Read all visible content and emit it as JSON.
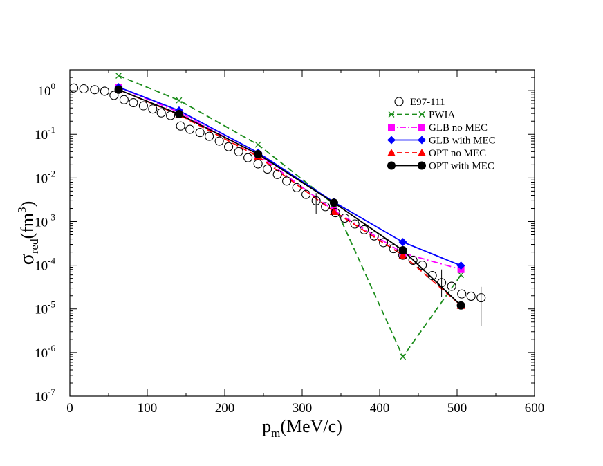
{
  "chart_data": {
    "type": "scatter",
    "title": "",
    "xlabel": {
      "main": "p",
      "sub": "m",
      "rest": "(MeV/c)"
    },
    "ylabel": {
      "main": "σ",
      "sub": "red",
      "rest": "(fm",
      "sup": "3",
      "close": ")"
    },
    "xlim": [
      0,
      600
    ],
    "ylim": [
      1e-07,
      3
    ],
    "yscale": "log",
    "x_ticks": [
      0,
      100,
      200,
      300,
      400,
      500,
      600
    ],
    "y_tick_exponents": [
      -7,
      -6,
      -5,
      -4,
      -3,
      -2,
      -1,
      0
    ],
    "grid": false,
    "legend_position": "top-right",
    "series": [
      {
        "name": "E97-111",
        "style": "open-circle",
        "color": "#000000",
        "x": [
          5,
          18,
          32,
          45,
          57,
          70,
          82,
          95,
          107,
          118,
          130,
          143,
          155,
          168,
          180,
          193,
          205,
          218,
          230,
          243,
          255,
          268,
          280,
          293,
          305,
          318,
          330,
          343,
          355,
          368,
          380,
          393,
          405,
          418,
          430,
          443,
          455,
          468,
          480,
          493,
          506,
          518,
          531
        ],
        "y": [
          1.15,
          1.1,
          1.05,
          0.97,
          0.78,
          0.62,
          0.53,
          0.45,
          0.38,
          0.31,
          0.27,
          0.155,
          0.13,
          0.11,
          0.09,
          0.07,
          0.052,
          0.04,
          0.029,
          0.021,
          0.016,
          0.012,
          0.0085,
          0.006,
          0.0042,
          0.003,
          0.0022,
          0.0016,
          0.0012,
          0.00088,
          0.00065,
          0.00047,
          0.00033,
          0.00024,
          0.00017,
          0.00013,
          0.0001,
          5.8e-05,
          4e-05,
          3.3e-05,
          2.2e-05,
          1.95e-05,
          1.8e-05
        ],
        "err_low": [
          null,
          null,
          null,
          null,
          null,
          null,
          null,
          null,
          null,
          null,
          null,
          null,
          null,
          null,
          null,
          null,
          null,
          null,
          null,
          null,
          null,
          null,
          null,
          null,
          null,
          0.0015,
          null,
          null,
          null,
          null,
          null,
          null,
          null,
          null,
          null,
          null,
          null,
          null,
          1.9e-05,
          null,
          null,
          null,
          4e-06
        ],
        "err_high": [
          null,
          null,
          null,
          null,
          null,
          null,
          null,
          null,
          null,
          null,
          null,
          null,
          null,
          null,
          null,
          null,
          null,
          null,
          null,
          null,
          null,
          null,
          null,
          null,
          null,
          0.0045,
          null,
          null,
          null,
          null,
          null,
          null,
          null,
          null,
          null,
          null,
          null,
          null,
          8e-05,
          null,
          null,
          null,
          3.2e-05
        ]
      },
      {
        "name": "PWIA",
        "style": "dashed",
        "marker": "x",
        "color": "#1a8c1a",
        "x": [
          63,
          141,
          243,
          341,
          430,
          505
        ],
        "y": [
          2.2,
          0.6,
          0.058,
          0.0025,
          8e-07,
          6e-05
        ]
      },
      {
        "name": "GLB no MEC",
        "style": "dash-dot",
        "marker": "square",
        "color": "#ff00ff",
        "x": [
          63,
          141,
          243,
          341,
          430,
          505
        ],
        "y": [
          1.2,
          0.32,
          0.034,
          0.0018,
          0.00019,
          8e-05
        ]
      },
      {
        "name": "GLB with MEC",
        "style": "solid",
        "marker": "diamond",
        "color": "#0000ff",
        "x": [
          63,
          141,
          243,
          341,
          430,
          505
        ],
        "y": [
          1.2,
          0.35,
          0.038,
          0.0028,
          0.00034,
          9.8e-05
        ]
      },
      {
        "name": "OPT no MEC",
        "style": "dashed",
        "marker": "triangle",
        "color": "#ff0000",
        "x": [
          63,
          141,
          243,
          341,
          430,
          505
        ],
        "y": [
          1.05,
          0.28,
          0.031,
          0.0017,
          0.00017,
          1.2e-05
        ]
      },
      {
        "name": "OPT with MEC",
        "style": "solid",
        "marker": "filled-circle",
        "color": "#000000",
        "x": [
          63,
          141,
          243,
          341,
          430,
          505
        ],
        "y": [
          1.05,
          0.29,
          0.035,
          0.0027,
          0.00022,
          1.2e-05
        ]
      }
    ]
  }
}
